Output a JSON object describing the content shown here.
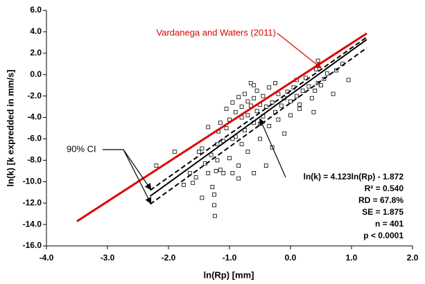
{
  "chart_data": {
    "type": "scatter",
    "x_label": "ln(Rp) [mm]",
    "y_label": "ln(k) [k expredded in mm/s]",
    "xlim": [
      -4,
      2
    ],
    "ylim": [
      -16,
      6
    ],
    "xticks": [
      {
        "value": -4,
        "label": "-4.0"
      },
      {
        "value": -3,
        "label": "-3.0"
      },
      {
        "value": -2,
        "label": "-2.0"
      },
      {
        "value": -1,
        "label": "-1.0"
      },
      {
        "value": 0,
        "label": "0.0"
      },
      {
        "value": 1,
        "label": "1.0"
      },
      {
        "value": 2,
        "label": "2.0"
      }
    ],
    "yticks": [
      {
        "value": 6,
        "label": "6.0"
      },
      {
        "value": 4,
        "label": "4.0"
      },
      {
        "value": 2,
        "label": "2.0"
      },
      {
        "value": 0,
        "label": "0.0"
      },
      {
        "value": -2,
        "label": "-2.0"
      },
      {
        "value": -4,
        "label": "-4.0"
      },
      {
        "value": -6,
        "label": "-6.0"
      },
      {
        "value": -8,
        "label": "-8.0"
      },
      {
        "value": -10,
        "label": "-10.0"
      },
      {
        "value": -12,
        "label": "-12.0"
      },
      {
        "value": -14,
        "label": "-14.0"
      },
      {
        "value": -16,
        "label": "-16.0"
      }
    ],
    "series": [
      {
        "marker": "square",
        "color": "#000000",
        "x": [
          -2.2,
          -1.6,
          -1.55,
          -1.5,
          -1.45,
          -1.4,
          -1.35,
          -1.3,
          -1.28,
          -1.25,
          -1.25,
          -1.24,
          -1.22,
          -1.2,
          -1.2,
          -1.18,
          -1.15,
          -1.1,
          -1.1,
          -1.05,
          -1.05,
          -1.0,
          -1.0,
          -0.95,
          -0.95,
          -0.9,
          -0.9,
          -0.85,
          -0.85,
          -0.8,
          -0.8,
          -0.8,
          -0.75,
          -0.75,
          -0.7,
          -0.7,
          -0.7,
          -0.65,
          -0.65,
          -0.6,
          -0.6,
          -0.6,
          -0.55,
          -0.55,
          -0.5,
          -0.5,
          -0.45,
          -0.45,
          -0.4,
          -0.4,
          -0.35,
          -0.35,
          -0.3,
          -0.3,
          -0.25,
          -0.2,
          -0.2,
          -0.15,
          -0.1,
          -0.1,
          -0.05,
          0.0,
          0.0,
          0.05,
          0.1,
          0.1,
          0.15,
          0.2,
          0.25,
          0.3,
          0.35,
          0.38,
          0.4,
          0.42,
          0.45,
          0.45,
          0.5,
          0.55,
          0.6,
          0.7,
          0.75,
          0.85,
          0.95,
          -1.9,
          -1.75,
          -1.65,
          -1.15,
          -0.95,
          -1.35,
          -1.45,
          -0.85,
          -0.6,
          -0.5,
          -0.25,
          0.15
        ],
        "values": [
          -8.5,
          -10.1,
          -9.6,
          -7.2,
          -6.9,
          -8.3,
          -9.2,
          -7.5,
          -10.5,
          -11.2,
          -12.2,
          -13.2,
          -9.0,
          -8.0,
          -6.5,
          -5.3,
          -4.5,
          -9.2,
          -6.2,
          -5.0,
          -3.2,
          -7.8,
          -4.2,
          -9.2,
          -2.6,
          -5.8,
          -3.5,
          -8.5,
          -2.1,
          -6.5,
          -4.0,
          -3.0,
          -1.8,
          -5.2,
          -2.5,
          -3.8,
          -7.2,
          -0.8,
          -2.9,
          -4.5,
          -2.2,
          -9.2,
          -3.4,
          -1.5,
          -2.8,
          -6.0,
          -3.9,
          -2.0,
          -8.5,
          -3.0,
          -1.2,
          -4.8,
          -2.6,
          -6.8,
          -3.5,
          -1.8,
          -4.2,
          -2.9,
          -2.2,
          -5.5,
          -1.6,
          -2.5,
          -3.8,
          -1.2,
          -2.0,
          -0.5,
          -2.8,
          -1.5,
          -0.3,
          -1.1,
          -2.2,
          -3.5,
          -1.5,
          0.5,
          1.3,
          -0.8,
          -1.0,
          -0.4,
          0.1,
          -1.8,
          0.4,
          1.0,
          -0.5,
          -7.2,
          -10.3,
          -9.2,
          -8.9,
          -6.0,
          -4.9,
          -11.5,
          -9.7,
          -1.0,
          -4.6,
          -0.8,
          -3.2
        ]
      }
    ],
    "lines": [
      {
        "label": "Vardanega and Waters (2011)",
        "color": "#e00000",
        "style": "solid",
        "x": [
          -3.5,
          1.25
        ],
        "values": [
          -13.7,
          3.85
        ]
      },
      {
        "color": "#000000",
        "style": "solid",
        "x": [
          -2.3,
          1.25
        ],
        "values": [
          -11.35,
          3.28
        ]
      },
      {
        "color": "#000000",
        "style": "dashed",
        "x": [
          -2.3,
          1.25
        ],
        "values": [
          -10.8,
          3.5
        ]
      },
      {
        "color": "#000000",
        "style": "dashed",
        "x": [
          -2.3,
          1.25
        ],
        "values": [
          -12.1,
          2.5
        ]
      }
    ],
    "ci_label": "90% CI",
    "fit_stats": [
      "ln(k) = 4.123ln(Rp) - 1.872",
      "R² = 0.540",
      "RD = 67.8%",
      "SE = 1.875",
      "n = 401",
      "p < 0.0001"
    ]
  }
}
